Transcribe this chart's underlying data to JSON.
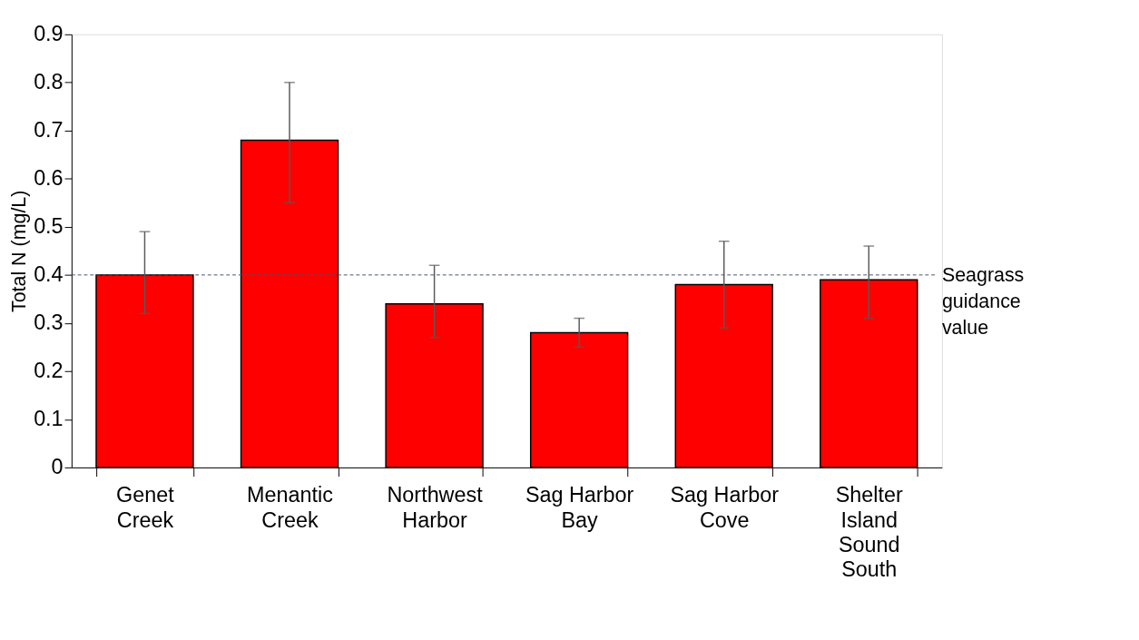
{
  "chart_data": {
    "type": "bar",
    "ylabel": "Total N (mg/L)",
    "categories": [
      "Genet Creek",
      "Menantic Creek",
      "Northwest Harbor",
      "Sag Harbor Bay",
      "Sag Harbor Cove",
      "Shelter Island Sound South"
    ],
    "values": [
      0.4,
      0.68,
      0.34,
      0.28,
      0.38,
      0.39
    ],
    "errors": [
      [
        0.32,
        0.49
      ],
      [
        0.55,
        0.8
      ],
      [
        0.27,
        0.42
      ],
      [
        0.25,
        0.31
      ],
      [
        0.29,
        0.47
      ],
      [
        0.31,
        0.46
      ]
    ],
    "color": "#ff0000",
    "ylim": [
      0,
      0.9
    ],
    "yticks": [
      0,
      0.1,
      0.2,
      0.3,
      0.4,
      0.5,
      0.6,
      0.7,
      0.8,
      0.9
    ],
    "ref_lines": [
      {
        "axis": "y",
        "value": 0.4,
        "label": "Seagrass guidance value",
        "color": "#44546a",
        "line_style": "dashed"
      }
    ],
    "grid": false
  }
}
